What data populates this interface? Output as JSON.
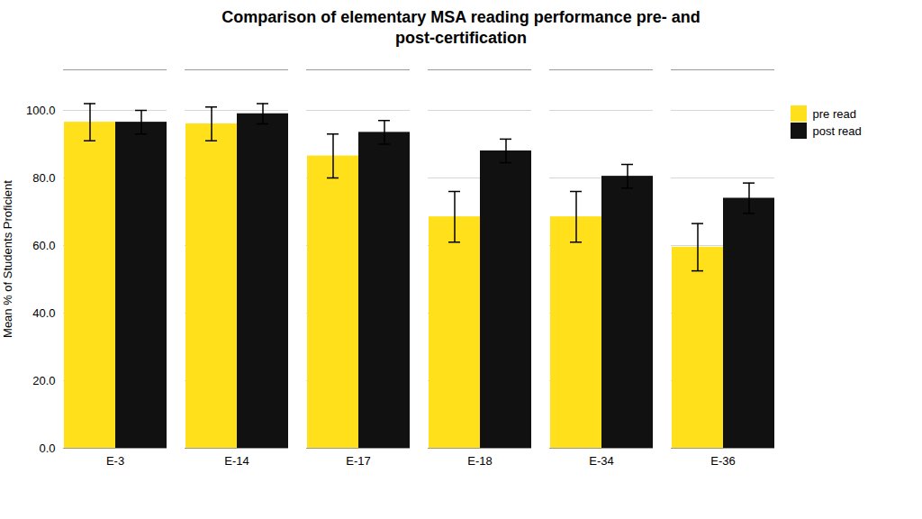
{
  "chart_data": {
    "type": "bar",
    "title": "Comparison of elementary MSA reading performance pre- and\npost-certification",
    "ylabel": "Mean % of Students Proficient",
    "categories": [
      "E-3",
      "E-14",
      "E-17",
      "E-18",
      "E-34",
      "E-36"
    ],
    "series": [
      {
        "name": "pre read",
        "color": "#FFE01A",
        "values": [
          96.5,
          96.0,
          86.5,
          68.5,
          68.5,
          59.5
        ],
        "errors": [
          5.5,
          5.0,
          6.5,
          7.5,
          7.5,
          7.0
        ]
      },
      {
        "name": "post read",
        "color": "#111111",
        "values": [
          96.5,
          99.0,
          93.5,
          88.0,
          80.5,
          74.0
        ],
        "errors": [
          3.5,
          3.0,
          3.5,
          3.5,
          3.5,
          4.5
        ]
      }
    ],
    "ylim": [
      0,
      112
    ],
    "yticks": [
      {
        "value": 0,
        "label": "0.0"
      },
      {
        "value": 20,
        "label": "20.0"
      },
      {
        "value": 40,
        "label": "40.0"
      },
      {
        "value": 60,
        "label": "60.0"
      },
      {
        "value": 80,
        "label": "80.0"
      },
      {
        "value": 100,
        "label": "100.0"
      }
    ],
    "grid": true,
    "legend": "right"
  }
}
